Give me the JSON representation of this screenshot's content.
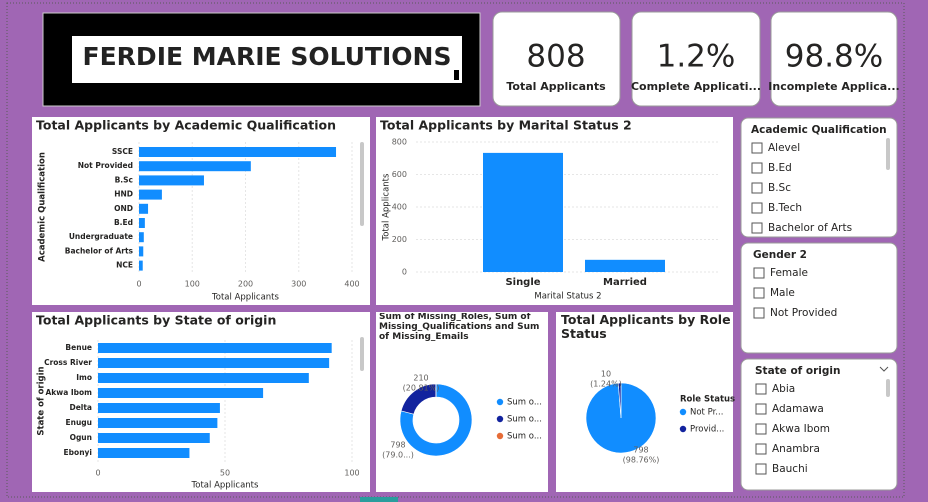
{
  "header": {
    "title": "FERDIE MARIE SOLUTIONS"
  },
  "cards": [
    {
      "value": "808",
      "label": "Total Applicants"
    },
    {
      "value": "1.2%",
      "label": "Complete Applicati..."
    },
    {
      "value": "98.8%",
      "label": "Incomplete Applica..."
    }
  ],
  "chart_data": [
    {
      "type": "bar",
      "orientation": "horizontal",
      "title": "Total Applicants by Academic Qualification",
      "categories": [
        "SSCE",
        "Not Provided",
        "B.Sc",
        "HND",
        "OND",
        "B.Ed",
        "Undergraduate",
        "Bachelor of Arts",
        "NCE"
      ],
      "values": [
        370,
        210,
        122,
        43,
        17,
        11,
        9,
        8,
        7
      ],
      "color": "#118DFF",
      "xlim": [
        0,
        400
      ],
      "xticks": [
        0,
        100,
        200,
        300,
        400
      ],
      "grid": true,
      "x_label": "Total Applicants",
      "y_label": "Academic Qualification"
    },
    {
      "type": "bar",
      "orientation": "vertical",
      "title": "Total Applicants by Marital Status 2",
      "categories": [
        "Single",
        "Married"
      ],
      "values": [
        733,
        75
      ],
      "color": "#118DFF",
      "ylim": [
        0,
        800
      ],
      "yticks": [
        0,
        200,
        400,
        600,
        800
      ],
      "grid": true,
      "x_label": "Marital Status 2",
      "y_label": "Total Applicants"
    },
    {
      "type": "bar",
      "orientation": "horizontal",
      "title": "Total Applicants by State of origin",
      "categories": [
        "Benue",
        "Cross River",
        "Imo",
        "Akwa Ibom",
        "Delta",
        "Enugu",
        "Ogun",
        "Ebonyi"
      ],
      "values": [
        92,
        91,
        83,
        65,
        48,
        47,
        44,
        36
      ],
      "color": "#118DFF",
      "xlim": [
        0,
        100
      ],
      "xticks": [
        0,
        50,
        100
      ],
      "grid": true,
      "x_label": "Total Applicants",
      "y_label": "State of origin"
    },
    {
      "type": "donut",
      "title": "Sum of Missing_Roles, Sum of Missing_Qualifications and Sum of Missing_Emails",
      "categories": [
        "Sum o...",
        "Sum o...",
        "Sum o..."
      ],
      "values": [
        798,
        210,
        1
      ],
      "colors": [
        "#118DFF",
        "#12239E",
        "#E66C37"
      ],
      "percent_labels": [
        "(79.0...)",
        "(20.81%)",
        null
      ]
    },
    {
      "type": "pie",
      "title": "Total Applicants by Role Status",
      "legend_title": "Role Status",
      "categories": [
        "Not Pr...",
        "Provid..."
      ],
      "values": [
        798,
        10
      ],
      "colors": [
        "#118DFF",
        "#12239E"
      ],
      "percent_labels": [
        "(98.76%)",
        "(1.24%)"
      ]
    }
  ],
  "slicers": [
    {
      "title": "Academic Qualification",
      "items": [
        "Alevel",
        "B.Ed",
        "B.Sc",
        "B.Tech",
        "Bachelor of Arts"
      ]
    },
    {
      "title": "Gender 2",
      "items": [
        "Female",
        "Male",
        "Not Provided"
      ]
    },
    {
      "title": "State of origin",
      "items": [
        "Abia",
        "Adamawa",
        "Akwa Ibom",
        "Anambra",
        "Bauchi"
      ]
    }
  ]
}
